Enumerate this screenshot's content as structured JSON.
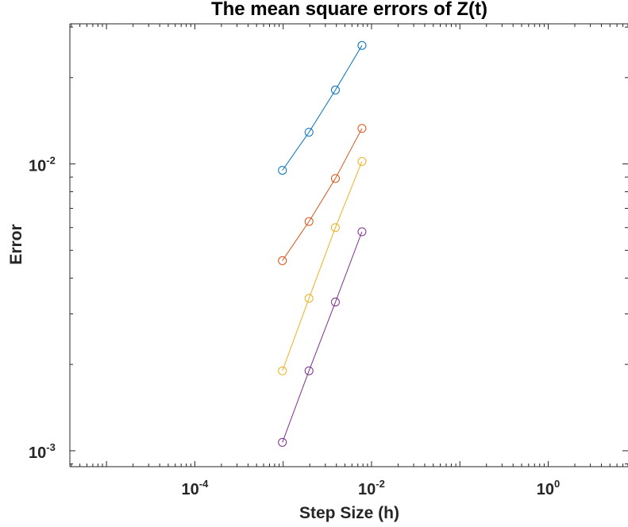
{
  "chart_data": {
    "type": "line",
    "title": "The mean square errors of Z(t)",
    "xlabel": "Step Size (h)",
    "ylabel": "Error",
    "xscale": "log",
    "yscale": "log",
    "xlim": [
      3.85e-06,
      8
    ],
    "ylim": [
      0.00088,
      0.0308
    ],
    "xticks": [
      {
        "value": 0.0001,
        "base": "10",
        "exp": "-4"
      },
      {
        "value": 0.01,
        "base": "10",
        "exp": "-2"
      },
      {
        "value": 1,
        "base": "10",
        "exp": "0"
      }
    ],
    "yticks": [
      {
        "value": 0.001,
        "base": "10",
        "exp": "-3"
      },
      {
        "value": 0.01,
        "base": "10",
        "exp": "-2"
      }
    ],
    "grid": false,
    "marker": "circle",
    "x": [
      0.00098,
      0.00196,
      0.0039,
      0.0078
    ],
    "series": [
      {
        "color": "#0072BD",
        "values": [
          0.0095,
          0.0129,
          0.0181,
          0.0259
        ]
      },
      {
        "color": "#D95319",
        "values": [
          0.0046,
          0.0063,
          0.0089,
          0.0133
        ]
      },
      {
        "color": "#EDB120",
        "values": [
          0.0019,
          0.0034,
          0.006,
          0.0102
        ]
      },
      {
        "color": "#7E2F8E",
        "values": [
          0.00107,
          0.0019,
          0.0033,
          0.0058
        ]
      }
    ]
  }
}
